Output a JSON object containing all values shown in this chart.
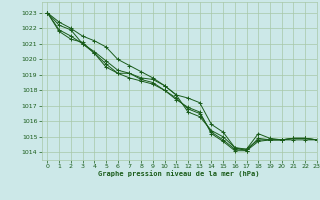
{
  "title": "Graphe pression niveau de la mer (hPa)",
  "bg_color": "#cce8e8",
  "grid_color": "#a8c8a8",
  "line_color": "#1a5c1a",
  "xlim": [
    -0.5,
    23
  ],
  "ylim": [
    1013.5,
    1023.7
  ],
  "yticks": [
    1014,
    1015,
    1016,
    1017,
    1018,
    1019,
    1020,
    1021,
    1022,
    1023
  ],
  "xticks": [
    0,
    1,
    2,
    3,
    4,
    5,
    6,
    7,
    8,
    9,
    10,
    11,
    12,
    13,
    14,
    15,
    16,
    17,
    18,
    19,
    20,
    21,
    22,
    23
  ],
  "series": [
    [
      1023.0,
      1022.4,
      1022.0,
      1021.5,
      1021.2,
      1020.8,
      1020.0,
      1019.6,
      1019.2,
      1018.8,
      1018.3,
      1017.7,
      1016.6,
      1016.3,
      1015.4,
      1015.0,
      1014.3,
      1014.1,
      1014.9,
      1014.8,
      1014.8,
      1014.9,
      1014.9,
      1014.8
    ],
    [
      1023.0,
      1022.2,
      1021.9,
      1021.0,
      1020.5,
      1019.9,
      1019.3,
      1019.1,
      1018.7,
      1018.5,
      1018.0,
      1017.5,
      1016.8,
      1016.5,
      1015.3,
      1014.8,
      1014.2,
      1014.2,
      1015.2,
      1014.9,
      1014.8,
      1014.9,
      1014.9,
      1014.8
    ],
    [
      1023.0,
      1021.9,
      1021.5,
      1021.0,
      1020.4,
      1019.7,
      1019.1,
      1018.8,
      1018.6,
      1018.4,
      1018.0,
      1017.4,
      1016.9,
      1016.6,
      1015.2,
      1014.7,
      1014.1,
      1014.1,
      1014.7,
      1014.8,
      1014.8,
      1014.9,
      1014.9,
      1014.8
    ],
    [
      1023.0,
      1021.8,
      1021.3,
      1021.1,
      1020.4,
      1019.5,
      1019.1,
      1019.1,
      1018.8,
      1018.7,
      1018.3,
      1017.7,
      1017.5,
      1017.2,
      1015.8,
      1015.3,
      1014.3,
      1014.2,
      1014.8,
      1014.8,
      1014.8,
      1014.8,
      1014.8,
      1014.8
    ]
  ]
}
